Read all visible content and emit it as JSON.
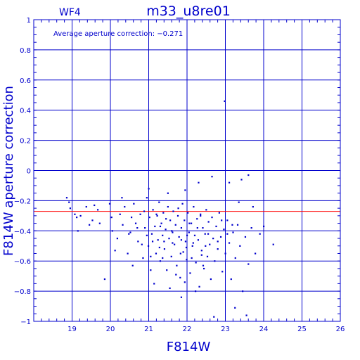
{
  "header": {
    "chip_label": "WF4",
    "title": "m33_u8re01"
  },
  "annotation": "Average aperture correction: −0.271",
  "chart_data": {
    "type": "scatter",
    "title": "m33_u8re01",
    "xlabel": "F814W",
    "ylabel": "F814W aperture correction",
    "xlim": [
      18,
      26
    ],
    "ylim": [
      -1,
      1
    ],
    "xticks": [
      "19",
      "20",
      "21",
      "22",
      "23",
      "24",
      "25",
      "26"
    ],
    "yticks": [
      "1",
      "0.8",
      "0.6",
      "0.4",
      "0.2",
      "0",
      "−0.2",
      "−0.4",
      "−0.6",
      "−0.8",
      "−1"
    ],
    "grid": true,
    "reference_line": {
      "y": -0.271,
      "color": "#ff0000"
    },
    "colors": {
      "axes": "#0000cc",
      "points": "#0000cc",
      "reference": "#ff0000"
    },
    "series": [
      {
        "points": [
          [
            18.86,
            -0.18
          ],
          [
            18.92,
            -0.21
          ],
          [
            18.95,
            -0.25
          ],
          [
            19.07,
            -0.29
          ],
          [
            19.12,
            -0.31
          ],
          [
            19.15,
            -0.4
          ],
          [
            19.22,
            -0.3
          ],
          [
            19.37,
            -0.24
          ],
          [
            19.45,
            -0.36
          ],
          [
            19.53,
            -0.33
          ],
          [
            19.58,
            -0.23
          ],
          [
            19.67,
            -0.26
          ],
          [
            19.72,
            -0.35
          ],
          [
            19.85,
            -0.72
          ],
          [
            19.98,
            -0.22
          ],
          [
            20.03,
            -0.31
          ],
          [
            20.05,
            -0.4
          ],
          [
            20.12,
            -0.53
          ],
          [
            20.18,
            -0.45
          ],
          [
            20.25,
            -0.29
          ],
          [
            20.32,
            -0.36
          ],
          [
            20.37,
            -0.24
          ],
          [
            20.45,
            -0.55
          ],
          [
            20.52,
            -0.41
          ],
          [
            20.58,
            -0.63
          ],
          [
            20.61,
            -0.22
          ],
          [
            20.66,
            -0.35
          ],
          [
            20.72,
            -0.47
          ],
          [
            20.78,
            -0.29
          ],
          [
            20.85,
            -0.58
          ],
          [
            20.9,
            -0.38
          ],
          [
            20.95,
            -0.18
          ],
          [
            20.99,
            -0.5
          ],
          [
            21.02,
            -0.31
          ],
          [
            21.05,
            -0.66
          ],
          [
            21.08,
            -0.42
          ],
          [
            21.11,
            -0.26
          ],
          [
            21.14,
            -0.75
          ],
          [
            21.16,
            -0.37
          ],
          [
            21.19,
            -0.55
          ],
          [
            21.22,
            -0.3
          ],
          [
            21.24,
            -0.46
          ],
          [
            21.27,
            -0.21
          ],
          [
            21.3,
            -0.6
          ],
          [
            21.33,
            -0.35
          ],
          [
            21.36,
            -0.43
          ],
          [
            21.38,
            -0.28
          ],
          [
            21.41,
            -0.52
          ],
          [
            21.44,
            -0.39
          ],
          [
            21.47,
            -0.66
          ],
          [
            21.5,
            -0.24
          ],
          [
            21.53,
            -0.45
          ],
          [
            21.56,
            -0.33
          ],
          [
            21.59,
            -0.57
          ],
          [
            21.62,
            -0.41
          ],
          [
            21.64,
            -0.27
          ],
          [
            21.67,
            -0.49
          ],
          [
            21.7,
            -0.36
          ],
          [
            21.73,
            -0.63
          ],
          [
            21.76,
            -0.3
          ],
          [
            21.79,
            -0.44
          ],
          [
            21.82,
            -0.71
          ],
          [
            21.85,
            -0.38
          ],
          [
            21.88,
            -0.22
          ],
          [
            21.9,
            -0.54
          ],
          [
            21.93,
            -0.33
          ],
          [
            21.96,
            -0.47
          ],
          [
            21.99,
            -0.59
          ],
          [
            22.02,
            -0.28
          ],
          [
            22.05,
            -0.41
          ],
          [
            22.08,
            -0.68
          ],
          [
            22.11,
            -0.35
          ],
          [
            22.14,
            -0.5
          ],
          [
            22.17,
            -0.24
          ],
          [
            22.2,
            -0.43
          ],
          [
            22.23,
            -0.61
          ],
          [
            22.26,
            -0.32
          ],
          [
            22.29,
            -0.46
          ],
          [
            22.32,
            -0.77
          ],
          [
            22.35,
            -0.29
          ],
          [
            22.38,
            -0.53
          ],
          [
            22.41,
            -0.38
          ],
          [
            22.44,
            -0.65
          ],
          [
            22.47,
            -0.42
          ],
          [
            22.5,
            -0.26
          ],
          [
            22.53,
            -0.57
          ],
          [
            22.56,
            -0.34
          ],
          [
            22.59,
            -0.49
          ],
          [
            22.62,
            -0.72
          ],
          [
            22.65,
            -0.31
          ],
          [
            22.68,
            -0.45
          ],
          [
            22.72,
            -0.6
          ],
          [
            22.76,
            -0.37
          ],
          [
            22.8,
            -0.52
          ],
          [
            22.84,
            -0.28
          ],
          [
            22.88,
            -0.44
          ],
          [
            22.92,
            -0.67
          ],
          [
            22.96,
            -0.39
          ],
          [
            23.0,
            -0.55
          ],
          [
            23.05,
            -0.33
          ],
          [
            23.1,
            -0.48
          ],
          [
            23.15,
            -0.72
          ],
          [
            23.2,
            -0.41
          ],
          [
            23.26,
            -0.58
          ],
          [
            23.32,
            -0.36
          ],
          [
            23.38,
            -0.5
          ],
          [
            23.45,
            -0.8
          ],
          [
            23.52,
            -0.44
          ],
          [
            23.6,
            -0.62
          ],
          [
            23.68,
            -0.38
          ],
          [
            23.78,
            -0.55
          ],
          [
            23.9,
            -0.42
          ],
          [
            24.0,
            -0.37
          ],
          [
            24.25,
            -0.49
          ],
          [
            23.55,
            -0.96
          ],
          [
            22.7,
            -0.97
          ],
          [
            21.85,
            -0.84
          ],
          [
            23.25,
            -0.91
          ],
          [
            23.42,
            -0.06
          ],
          [
            23.6,
            -0.03
          ],
          [
            23.1,
            -0.08
          ],
          [
            22.65,
            -0.04
          ],
          [
            22.3,
            -0.08
          ],
          [
            21.95,
            -0.13
          ],
          [
            21.5,
            -0.15
          ],
          [
            21.0,
            -0.12
          ],
          [
            20.3,
            -0.18
          ],
          [
            23.72,
            -0.24
          ],
          [
            23.35,
            -0.21
          ],
          [
            22.98,
            0.46
          ],
          [
            20.82,
            -0.49
          ],
          [
            20.48,
            -0.42
          ],
          [
            21.28,
            -0.51
          ],
          [
            21.62,
            -0.48
          ],
          [
            21.83,
            -0.55
          ],
          [
            22.12,
            -0.58
          ],
          [
            22.42,
            -0.63
          ],
          [
            21.36,
            -0.58
          ],
          [
            21.71,
            -0.69
          ],
          [
            21.94,
            -0.74
          ],
          [
            22.22,
            -0.8
          ],
          [
            21.55,
            -0.78
          ],
          [
            21.2,
            -0.29
          ],
          [
            21.45,
            -0.32
          ],
          [
            21.77,
            -0.25
          ],
          [
            22.06,
            -0.35
          ],
          [
            22.35,
            -0.3
          ],
          [
            21.1,
            -0.47
          ],
          [
            21.6,
            -0.4
          ],
          [
            22.0,
            -0.43
          ],
          [
            22.27,
            -0.38
          ],
          [
            22.55,
            -0.42
          ],
          [
            21.3,
            -0.37
          ],
          [
            21.85,
            -0.46
          ],
          [
            22.16,
            -0.48
          ],
          [
            22.48,
            -0.5
          ],
          [
            21.05,
            -0.57
          ],
          [
            21.4,
            -0.47
          ],
          [
            21.98,
            -0.51
          ],
          [
            22.38,
            -0.56
          ],
          [
            20.7,
            -0.38
          ],
          [
            20.95,
            -0.43
          ],
          [
            22.8,
            -0.47
          ],
          [
            23.05,
            -0.42
          ],
          [
            20.55,
            -0.31
          ],
          [
            20.88,
            -0.27
          ],
          [
            22.9,
            -0.33
          ],
          [
            23.18,
            -0.36
          ]
        ]
      }
    ]
  }
}
